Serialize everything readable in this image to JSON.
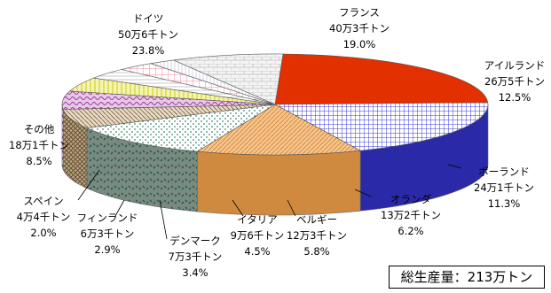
{
  "chart_data": {
    "type": "pie",
    "title": "",
    "total_label": "総生産量：213万トン",
    "slices": [
      {
        "name": "ドイツ",
        "amount": "50万6千トン",
        "percent": "23.8%",
        "value": 23.8,
        "color": "#e23000",
        "pattern": "solid"
      },
      {
        "name": "フランス",
        "amount": "40万3千トン",
        "percent": "19.0%",
        "value": 19.0,
        "color": "#3a3ad8",
        "pattern": "grid"
      },
      {
        "name": "アイルランド",
        "amount": "26万5千トン",
        "percent": "12.5%",
        "value": 12.5,
        "color": "#f4b36a",
        "pattern": "hatch"
      },
      {
        "name": "ポーランド",
        "amount": "24万1千トン",
        "percent": "11.3%",
        "value": 11.3,
        "color": "#3a8a6a",
        "pattern": "dots"
      },
      {
        "name": "オランダ",
        "amount": "13万2千トン",
        "percent": "6.2%",
        "value": 6.2,
        "color": "#7a6040",
        "pattern": "diag"
      },
      {
        "name": "ベルギー",
        "amount": "12万3千トン",
        "percent": "5.8%",
        "value": 5.8,
        "color": "#7a1a8a",
        "pattern": "wave"
      },
      {
        "name": "イタリア",
        "amount": "9万6千トン",
        "percent": "4.5%",
        "value": 4.5,
        "color": "#e6e65a",
        "pattern": "vlines"
      },
      {
        "name": "デンマーク",
        "amount": "7万3千トン",
        "percent": "3.4%",
        "value": 3.4,
        "color": "#c0c0c0",
        "pattern": "hlines"
      },
      {
        "name": "フィンランド",
        "amount": "6万3千トン",
        "percent": "2.9%",
        "value": 2.9,
        "color": "#f08aa0",
        "pattern": "grid"
      },
      {
        "name": "スペイン",
        "amount": "4万4千トン",
        "percent": "2.0%",
        "value": 2.0,
        "color": "#b0b0d0",
        "pattern": "vlines"
      },
      {
        "name": "その他",
        "amount": "18万1千トン",
        "percent": "8.5%",
        "value": 8.5,
        "color": "#d0d0d0",
        "pattern": "brick"
      }
    ]
  }
}
